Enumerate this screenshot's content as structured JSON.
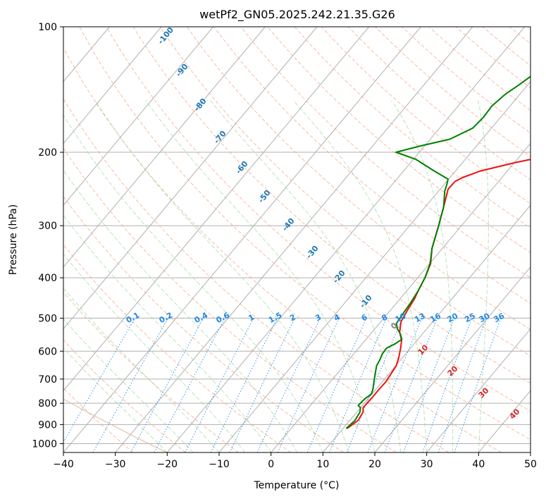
{
  "chart_data": {
    "type": "line",
    "subtype": "skew-t-log-p",
    "title": "wetPf2_GN05.2025.242.21.35.G26",
    "xlabel": "Temperature (°C)",
    "ylabel": "Pressure (hPa)",
    "xlim": [
      -40,
      50
    ],
    "ylim": [
      1050,
      100
    ],
    "y_scale": "log",
    "grid": true,
    "x_ticks": [
      -40,
      -30,
      -20,
      -10,
      0,
      10,
      20,
      30,
      40,
      50
    ],
    "y_ticks": [
      100,
      200,
      300,
      400,
      500,
      600,
      700,
      800,
      900,
      1000
    ],
    "series": [
      {
        "color": "#ee1111",
        "points": [
          {
            "t": 10.8,
            "p": 920
          },
          {
            "t": 11.6,
            "p": 880
          },
          {
            "t": 11.2,
            "p": 840
          },
          {
            "t": 10.5,
            "p": 820
          },
          {
            "t": 10.6,
            "p": 780
          },
          {
            "t": 10.6,
            "p": 740
          },
          {
            "t": 10.7,
            "p": 710
          },
          {
            "t": 10.4,
            "p": 680
          },
          {
            "t": 10.1,
            "p": 650
          },
          {
            "t": 9.2,
            "p": 620
          },
          {
            "t": 8.1,
            "p": 590
          },
          {
            "t": 7.0,
            "p": 565
          },
          {
            "t": 5.3,
            "p": 540
          },
          {
            "t": 3.9,
            "p": 510
          },
          {
            "t": 3.3,
            "p": 480
          },
          {
            "t": 2.8,
            "p": 450
          },
          {
            "t": 2.2,
            "p": 430
          },
          {
            "t": 1.4,
            "p": 400
          },
          {
            "t": 0.2,
            "p": 370
          },
          {
            "t": -2.0,
            "p": 340
          },
          {
            "t": -4.4,
            "p": 300
          },
          {
            "t": -6.5,
            "p": 270
          },
          {
            "t": -8.5,
            "p": 245
          },
          {
            "t": -8.4,
            "p": 235
          },
          {
            "t": -7.6,
            "p": 230
          },
          {
            "t": -5.3,
            "p": 222
          },
          {
            "t": 0.0,
            "p": 212
          },
          {
            "t": 4.6,
            "p": 205
          },
          {
            "t": 7.6,
            "p": 197
          },
          {
            "t": 10.0,
            "p": 187
          },
          {
            "t": 11.8,
            "p": 172
          },
          {
            "t": 14.1,
            "p": 155
          },
          {
            "t": 17.8,
            "p": 141
          },
          {
            "t": 21.4,
            "p": 128
          },
          {
            "t": 24.1,
            "p": 118
          },
          {
            "t": 25.7,
            "p": 110
          },
          {
            "t": 26.6,
            "p": 100
          }
        ]
      },
      {
        "color": "#008000",
        "points": [
          {
            "t": 10.6,
            "p": 920
          },
          {
            "t": 11.0,
            "p": 880
          },
          {
            "t": 10.6,
            "p": 840
          },
          {
            "t": 10.0,
            "p": 820
          },
          {
            "t": 9.2,
            "p": 810
          },
          {
            "t": 9.4,
            "p": 780
          },
          {
            "t": 9.9,
            "p": 760
          },
          {
            "t": 9.4,
            "p": 740
          },
          {
            "t": 8.2,
            "p": 705
          },
          {
            "t": 7.0,
            "p": 670
          },
          {
            "t": 6.3,
            "p": 650
          },
          {
            "t": 6.0,
            "p": 630
          },
          {
            "t": 5.5,
            "p": 610
          },
          {
            "t": 5.4,
            "p": 590
          },
          {
            "t": 6.4,
            "p": 575
          },
          {
            "t": 6.9,
            "p": 562
          },
          {
            "t": 5.7,
            "p": 545
          },
          {
            "t": 4.3,
            "p": 530
          },
          {
            "t": 3.3,
            "p": 515
          },
          {
            "t": 3.0,
            "p": 490
          },
          {
            "t": 2.7,
            "p": 460
          },
          {
            "t": 2.2,
            "p": 430
          },
          {
            "t": 1.4,
            "p": 400
          },
          {
            "t": 0.1,
            "p": 370
          },
          {
            "t": -2.0,
            "p": 340
          },
          {
            "t": -4.4,
            "p": 300
          },
          {
            "t": -6.5,
            "p": 270
          },
          {
            "t": -8.8,
            "p": 248
          },
          {
            "t": -9.4,
            "p": 240
          },
          {
            "t": -10.1,
            "p": 232
          },
          {
            "t": -14.0,
            "p": 222
          },
          {
            "t": -19.5,
            "p": 208
          },
          {
            "t": -24.5,
            "p": 200
          },
          {
            "t": -20.7,
            "p": 193
          },
          {
            "t": -16.2,
            "p": 186
          },
          {
            "t": -13.6,
            "p": 175
          },
          {
            "t": -13.3,
            "p": 165
          },
          {
            "t": -13.5,
            "p": 155
          },
          {
            "t": -12.8,
            "p": 145
          },
          {
            "t": -11.7,
            "p": 138
          },
          {
            "t": -10.6,
            "p": 130
          },
          {
            "t": -9.8,
            "p": 122
          },
          {
            "t": -7.3,
            "p": 115
          },
          {
            "t": -3.2,
            "p": 107
          },
          {
            "t": 1.7,
            "p": 100
          }
        ]
      }
    ],
    "mixing_ratio_labels": [
      "0.1",
      "0.2",
      "0.4",
      "0.6",
      "1",
      "1.5",
      "2",
      "3",
      "4",
      "6",
      "8",
      "10",
      "13",
      "16",
      "20",
      "25",
      "30",
      "36"
    ],
    "mixing_ratio_values": [
      0.1,
      0.2,
      0.4,
      0.6,
      1,
      1.5,
      2,
      3,
      4,
      6,
      8,
      10,
      13,
      16,
      20,
      25,
      30,
      36
    ],
    "dry_adiabat_labels": [
      "-100",
      "-90",
      "-80",
      "-70",
      "-60",
      "-50",
      "-40",
      "-30",
      "-20",
      "-10"
    ],
    "moist_adiabat_labels": [
      {
        "text": "0",
        "color": "#808080"
      },
      {
        "text": "10",
        "color": "#d62728"
      },
      {
        "text": "20",
        "color": "#d62728"
      },
      {
        "text": "30",
        "color": "#d62728"
      },
      {
        "text": "40",
        "color": "#d62728"
      }
    ]
  }
}
